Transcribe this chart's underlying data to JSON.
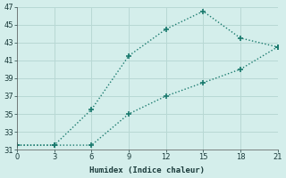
{
  "line1_x": [
    0,
    3,
    6,
    9,
    12,
    15,
    18,
    21
  ],
  "line1_y": [
    31.5,
    31.5,
    35.5,
    41.5,
    44.5,
    46.5,
    43.5,
    42.5
  ],
  "line2_x": [
    0,
    3,
    6,
    9,
    12,
    15,
    18,
    21
  ],
  "line2_y": [
    31.5,
    31.5,
    31.5,
    35.0,
    37.0,
    38.5,
    40.0,
    42.5
  ],
  "line_color": "#1a7a6e",
  "bg_color": "#d4eeeb",
  "grid_color": "#b8d8d4",
  "xlabel": "Humidex (Indice chaleur)",
  "xlim": [
    0,
    21
  ],
  "ylim": [
    31,
    47
  ],
  "xticks": [
    0,
    3,
    6,
    9,
    12,
    15,
    18,
    21
  ],
  "yticks": [
    31,
    33,
    35,
    37,
    39,
    41,
    43,
    45,
    47
  ]
}
